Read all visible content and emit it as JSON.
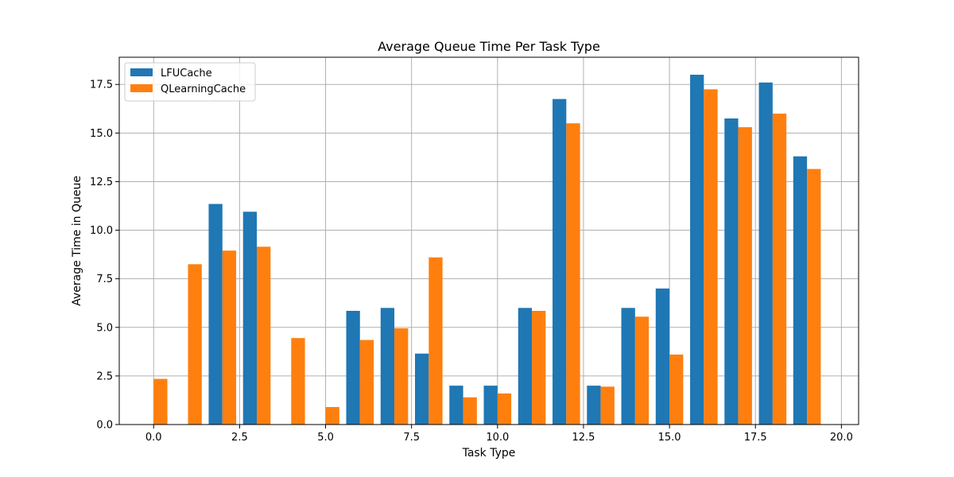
{
  "chart_data": {
    "type": "bar",
    "title": "Average Queue Time Per Task Type",
    "xlabel": "Task Type",
    "ylabel": "Average Time in Queue",
    "x": [
      0,
      1,
      2,
      3,
      4,
      5,
      6,
      7,
      8,
      9,
      10,
      11,
      12,
      13,
      14,
      15,
      16,
      17,
      18,
      19
    ],
    "xlim": [
      -1.0,
      20.5
    ],
    "ylim": [
      0,
      18.9
    ],
    "xticks": [
      0.0,
      2.5,
      5.0,
      7.5,
      10.0,
      12.5,
      15.0,
      17.5,
      20.0
    ],
    "xtick_labels": [
      "0.0",
      "2.5",
      "5.0",
      "7.5",
      "10.0",
      "12.5",
      "15.0",
      "17.5",
      "20.0"
    ],
    "yticks": [
      0.0,
      2.5,
      5.0,
      7.5,
      10.0,
      12.5,
      15.0,
      17.5
    ],
    "ytick_labels": [
      "0.0",
      "2.5",
      "5.0",
      "7.5",
      "10.0",
      "12.5",
      "15.0",
      "17.5"
    ],
    "grid": true,
    "legend_position": "top-left",
    "series": [
      {
        "name": "LFUCache",
        "color": "#1f77b4",
        "values": [
          0.02,
          0.02,
          11.35,
          10.95,
          0.02,
          0.0,
          5.85,
          6.0,
          3.65,
          2.0,
          2.0,
          6.0,
          16.75,
          2.0,
          6.0,
          7.0,
          18.0,
          15.75,
          17.6,
          13.8
        ]
      },
      {
        "name": "QLearningCache",
        "color": "#ff7f0e",
        "values": [
          2.35,
          8.25,
          8.95,
          9.15,
          4.45,
          0.9,
          4.35,
          4.95,
          8.6,
          1.4,
          1.6,
          5.85,
          15.5,
          1.95,
          5.55,
          3.6,
          17.25,
          15.3,
          16.0,
          13.15
        ]
      }
    ]
  }
}
